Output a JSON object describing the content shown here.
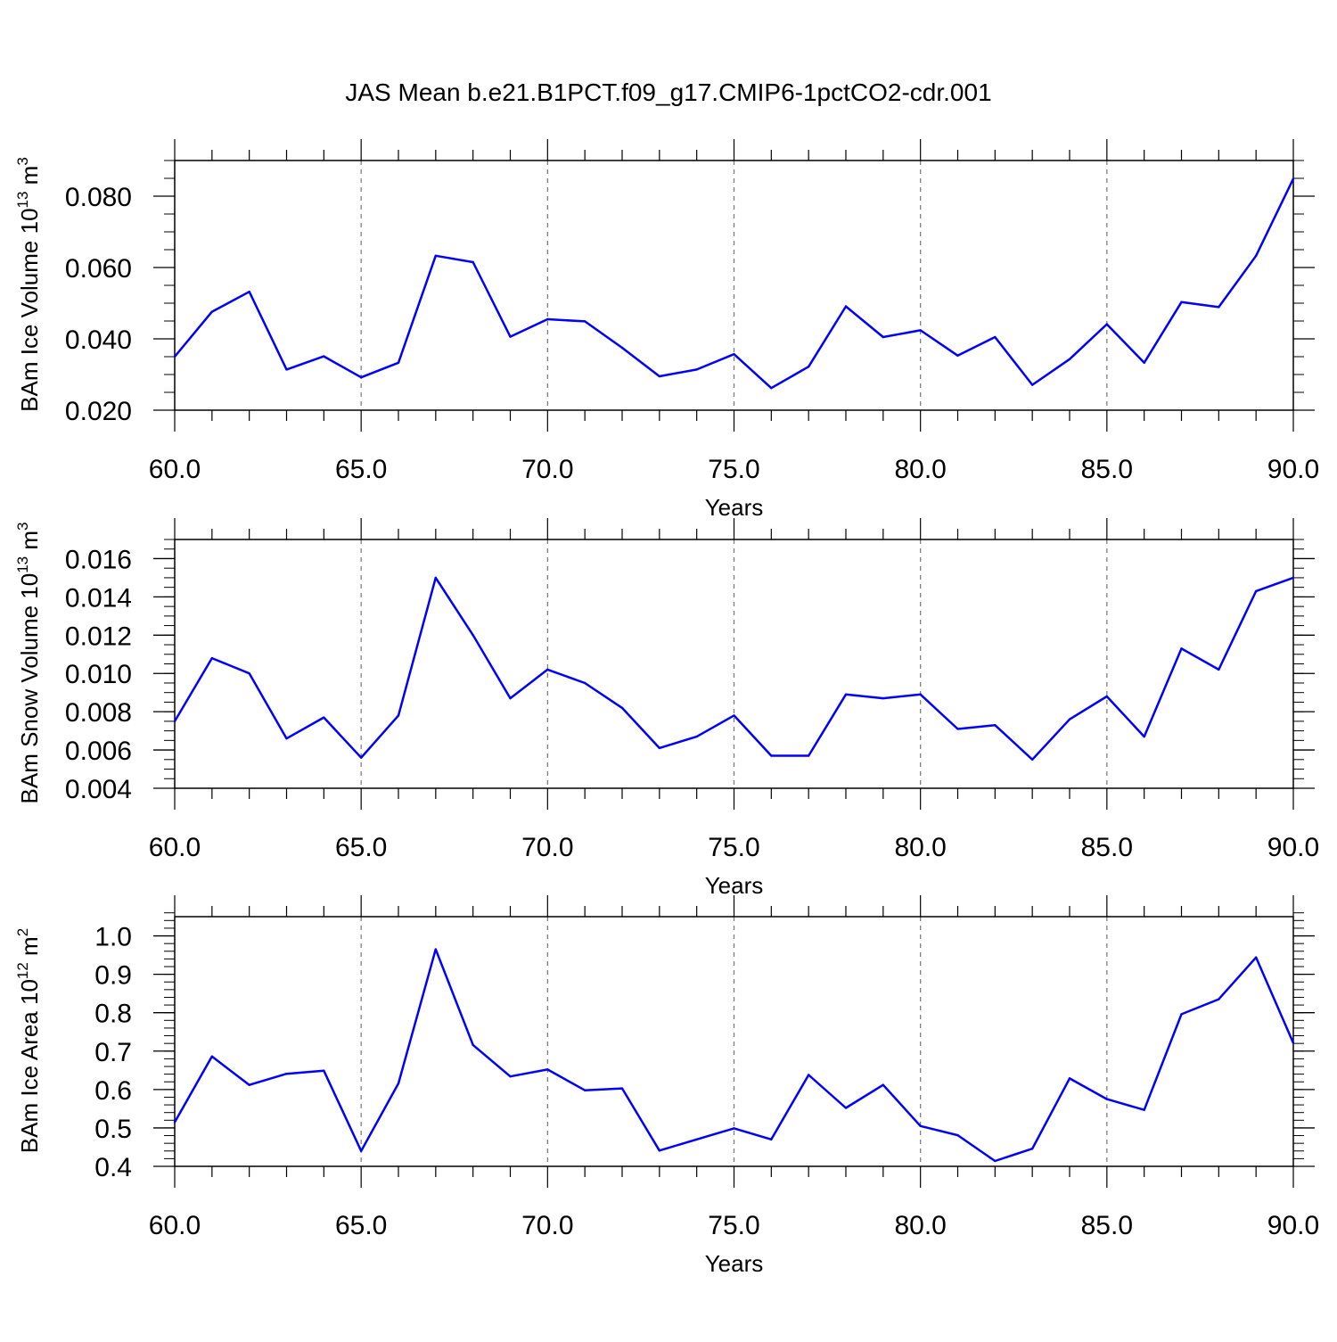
{
  "title": "JAS Mean b.e21.B1PCT.f09_g17.CMIP6-1pctCO2-cdr.001",
  "colors": {
    "series": "#0000ff",
    "axis": "#000000",
    "grid": "#777777"
  },
  "chart_data": [
    {
      "type": "line",
      "xlabel": "Years",
      "ylabel": {
        "main": "BAm Ice Volume 10",
        "exp": "13",
        "unit": " m",
        "unit_exp": "3"
      },
      "xlim": [
        60,
        90
      ],
      "ylim": [
        0.02,
        0.09
      ],
      "xticks": [
        60,
        65,
        70,
        75,
        80,
        85,
        90
      ],
      "xtick_labels": [
        "60.0",
        "65.0",
        "70.0",
        "75.0",
        "80.0",
        "85.0",
        "90.0"
      ],
      "yticks": [
        0.02,
        0.04,
        0.06,
        0.08
      ],
      "ytick_labels": [
        "0.020",
        "0.040",
        "0.060",
        "0.080"
      ],
      "yminor_step": 0.005,
      "grid": "vertical dashed at major x ticks",
      "x": [
        60,
        61,
        62,
        63,
        64,
        65,
        66,
        67,
        68,
        69,
        70,
        71,
        72,
        73,
        74,
        75,
        76,
        77,
        78,
        79,
        80,
        81,
        82,
        83,
        84,
        85,
        86,
        87,
        88,
        89,
        90
      ],
      "y": [
        0.035,
        0.0476,
        0.0532,
        0.0314,
        0.0351,
        0.0292,
        0.0333,
        0.0633,
        0.0615,
        0.0406,
        0.0455,
        0.0449,
        0.0375,
        0.0295,
        0.0314,
        0.0357,
        0.0262,
        0.0322,
        0.0491,
        0.0405,
        0.0424,
        0.0353,
        0.0405,
        0.0271,
        0.0343,
        0.0441,
        0.0333,
        0.0503,
        0.0489,
        0.0633,
        0.0849
      ]
    },
    {
      "type": "line",
      "xlabel": "Years",
      "ylabel": {
        "main": "BAm Snow Volume 10",
        "exp": "13",
        "unit": " m",
        "unit_exp": "3"
      },
      "xlim": [
        60,
        90
      ],
      "ylim": [
        0.004,
        0.017
      ],
      "xticks": [
        60,
        65,
        70,
        75,
        80,
        85,
        90
      ],
      "xtick_labels": [
        "60.0",
        "65.0",
        "70.0",
        "75.0",
        "80.0",
        "85.0",
        "90.0"
      ],
      "yticks": [
        0.004,
        0.006,
        0.008,
        0.01,
        0.012,
        0.014,
        0.016
      ],
      "ytick_labels": [
        "0.004",
        "0.006",
        "0.008",
        "0.010",
        "0.012",
        "0.014",
        "0.016"
      ],
      "yminor_step": 0.0005,
      "grid": "vertical dashed at major x ticks",
      "x": [
        60,
        61,
        62,
        63,
        64,
        65,
        66,
        67,
        68,
        69,
        70,
        71,
        72,
        73,
        74,
        75,
        76,
        77,
        78,
        79,
        80,
        81,
        82,
        83,
        84,
        85,
        86,
        87,
        88,
        89,
        90
      ],
      "y": [
        0.0075,
        0.0108,
        0.01,
        0.0066,
        0.0077,
        0.0056,
        0.0078,
        0.015,
        0.012,
        0.0087,
        0.0102,
        0.0095,
        0.0082,
        0.0061,
        0.0067,
        0.0078,
        0.0057,
        0.0057,
        0.0089,
        0.0087,
        0.0089,
        0.0071,
        0.0073,
        0.0055,
        0.0076,
        0.0088,
        0.0067,
        0.0113,
        0.0102,
        0.0143,
        0.015
      ]
    },
    {
      "type": "line",
      "xlabel": "Years",
      "ylabel": {
        "main": "BAm Ice Area 10",
        "exp": "12",
        "unit": " m",
        "unit_exp": "2"
      },
      "xlim": [
        60,
        90
      ],
      "ylim": [
        0.4,
        1.05
      ],
      "xticks": [
        60,
        65,
        70,
        75,
        80,
        85,
        90
      ],
      "xtick_labels": [
        "60.0",
        "65.0",
        "70.0",
        "75.0",
        "80.0",
        "85.0",
        "90.0"
      ],
      "yticks": [
        0.4,
        0.5,
        0.6,
        0.7,
        0.8,
        0.9,
        1.0
      ],
      "ytick_labels": [
        "0.4",
        "0.5",
        "0.6",
        "0.7",
        "0.8",
        "0.9",
        "1.0"
      ],
      "yminor_step": 0.02,
      "grid": "vertical dashed at major x ticks",
      "x": [
        60,
        61,
        62,
        63,
        64,
        65,
        66,
        67,
        68,
        69,
        70,
        71,
        72,
        73,
        74,
        75,
        76,
        77,
        78,
        79,
        80,
        81,
        82,
        83,
        84,
        85,
        86,
        87,
        88,
        89,
        90
      ],
      "y": [
        0.515,
        0.686,
        0.612,
        0.641,
        0.649,
        0.44,
        0.616,
        0.965,
        0.716,
        0.634,
        0.652,
        0.598,
        0.603,
        0.441,
        0.47,
        0.499,
        0.47,
        0.638,
        0.552,
        0.612,
        0.505,
        0.481,
        0.414,
        0.446,
        0.629,
        0.575,
        0.547,
        0.796,
        0.835,
        0.944,
        0.721
      ]
    }
  ]
}
